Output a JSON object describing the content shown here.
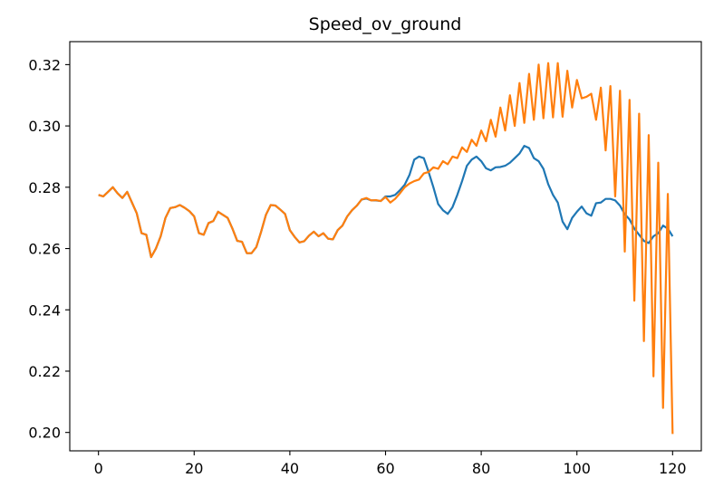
{
  "chart_data": {
    "type": "line",
    "title": "Speed_ov_ground",
    "xlabel": "",
    "ylabel": "",
    "xlim": [
      -6,
      126
    ],
    "ylim": [
      0.194,
      0.3275
    ],
    "xticks": [
      0,
      20,
      40,
      60,
      80,
      100,
      120
    ],
    "yticks": [
      0.2,
      0.22,
      0.24,
      0.26,
      0.28,
      0.3,
      0.32
    ],
    "ytick_labels": [
      "0.20",
      "0.22",
      "0.24",
      "0.26",
      "0.28",
      "0.30",
      "0.32"
    ],
    "grid": false,
    "legend": "none",
    "series": [
      {
        "color": "#1f77b4",
        "x": [
          0,
          1,
          2,
          3,
          4,
          5,
          6,
          7,
          8,
          9,
          10,
          11,
          12,
          13,
          14,
          15,
          16,
          17,
          18,
          19,
          20,
          21,
          22,
          23,
          24,
          25,
          26,
          27,
          28,
          29,
          30,
          31,
          32,
          33,
          34,
          35,
          36,
          37,
          38,
          39,
          40,
          41,
          42,
          43,
          44,
          45,
          46,
          47,
          48,
          49,
          50,
          51,
          52,
          53,
          54,
          55,
          56,
          57,
          58,
          59,
          60,
          61,
          62,
          63,
          64,
          65,
          66,
          67,
          68,
          69,
          70,
          71,
          72,
          73,
          74,
          75,
          76,
          77,
          78,
          79,
          80,
          81,
          82,
          83,
          84,
          85,
          86,
          87,
          88,
          89,
          90,
          91,
          92,
          93,
          94,
          95,
          96,
          97,
          98,
          99,
          100,
          101,
          102,
          103,
          104,
          105,
          106,
          107,
          108,
          109,
          110,
          111,
          112,
          113,
          114,
          115,
          116,
          117,
          118,
          119,
          120
        ],
        "y": [
          0.2775,
          0.277,
          0.2785,
          0.28,
          0.278,
          0.2765,
          0.2785,
          0.275,
          0.2715,
          0.265,
          0.2645,
          0.2572,
          0.26,
          0.264,
          0.27,
          0.2732,
          0.2735,
          0.2742,
          0.2733,
          0.2722,
          0.2705,
          0.265,
          0.2645,
          0.2683,
          0.269,
          0.272,
          0.271,
          0.27,
          0.2665,
          0.2625,
          0.2622,
          0.2585,
          0.2585,
          0.2605,
          0.2655,
          0.271,
          0.2742,
          0.274,
          0.2727,
          0.2713,
          0.266,
          0.2638,
          0.262,
          0.2624,
          0.2642,
          0.2655,
          0.264,
          0.265,
          0.2632,
          0.263,
          0.266,
          0.2675,
          0.2705,
          0.2725,
          0.274,
          0.276,
          0.2763,
          0.2757,
          0.2757,
          0.2755,
          0.277,
          0.277,
          0.2775,
          0.279,
          0.2808,
          0.284,
          0.289,
          0.29,
          0.2895,
          0.285,
          0.28,
          0.2745,
          0.2725,
          0.2713,
          0.2735,
          0.2775,
          0.282,
          0.287,
          0.289,
          0.29,
          0.2885,
          0.2862,
          0.2855,
          0.2865,
          0.2866,
          0.287,
          0.288,
          0.2895,
          0.291,
          0.2935,
          0.2928,
          0.2895,
          0.2885,
          0.286,
          0.281,
          0.2775,
          0.275,
          0.2688,
          0.2663,
          0.27,
          0.272,
          0.2737,
          0.2715,
          0.2707,
          0.2748,
          0.275,
          0.2762,
          0.2762,
          0.2757,
          0.274,
          0.2712,
          0.2695,
          0.2665,
          0.2645,
          0.2625,
          0.2618,
          0.264,
          0.265,
          0.2675,
          0.2665,
          0.264
        ]
      },
      {
        "color": "#ff7f0e",
        "x": [
          0,
          1,
          2,
          3,
          4,
          5,
          6,
          7,
          8,
          9,
          10,
          11,
          12,
          13,
          14,
          15,
          16,
          17,
          18,
          19,
          20,
          21,
          22,
          23,
          24,
          25,
          26,
          27,
          28,
          29,
          30,
          31,
          32,
          33,
          34,
          35,
          36,
          37,
          38,
          39,
          40,
          41,
          42,
          43,
          44,
          45,
          46,
          47,
          48,
          49,
          50,
          51,
          52,
          53,
          54,
          55,
          56,
          57,
          58,
          59,
          60,
          61,
          62,
          63,
          64,
          65,
          66,
          67,
          68,
          69,
          70,
          71,
          72,
          73,
          74,
          75,
          76,
          77,
          78,
          79,
          80,
          81,
          82,
          83,
          84,
          85,
          86,
          87,
          88,
          89,
          90,
          91,
          92,
          93,
          94,
          95,
          96,
          97,
          98,
          99,
          100,
          101,
          102,
          103,
          104,
          105,
          106,
          107,
          108,
          109,
          110,
          111,
          112,
          113,
          114,
          115,
          116,
          117,
          118,
          119,
          120
        ],
        "y": [
          0.2775,
          0.277,
          0.2785,
          0.28,
          0.278,
          0.2765,
          0.2785,
          0.275,
          0.2715,
          0.265,
          0.2645,
          0.2572,
          0.26,
          0.264,
          0.27,
          0.2732,
          0.2735,
          0.2742,
          0.2733,
          0.2722,
          0.2705,
          0.265,
          0.2645,
          0.2683,
          0.269,
          0.272,
          0.271,
          0.27,
          0.2665,
          0.2625,
          0.2622,
          0.2585,
          0.2585,
          0.2605,
          0.2655,
          0.271,
          0.2742,
          0.274,
          0.2727,
          0.2713,
          0.266,
          0.2638,
          0.262,
          0.2624,
          0.2642,
          0.2655,
          0.264,
          0.265,
          0.2632,
          0.263,
          0.266,
          0.2675,
          0.2705,
          0.2725,
          0.274,
          0.276,
          0.2765,
          0.2757,
          0.2758,
          0.2755,
          0.2768,
          0.275,
          0.2762,
          0.278,
          0.28,
          0.2812,
          0.282,
          0.2825,
          0.2845,
          0.285,
          0.2865,
          0.286,
          0.2885,
          0.2875,
          0.29,
          0.2895,
          0.293,
          0.2915,
          0.2955,
          0.2935,
          0.2985,
          0.295,
          0.302,
          0.2965,
          0.306,
          0.2985,
          0.31,
          0.3,
          0.314,
          0.301,
          0.317,
          0.302,
          0.32,
          0.3025,
          0.3205,
          0.3028,
          0.3205,
          0.303,
          0.318,
          0.306,
          0.315,
          0.309,
          0.3095,
          0.3105,
          0.302,
          0.3125,
          0.292,
          0.313,
          0.277,
          0.3115,
          0.259,
          0.3085,
          0.243,
          0.304,
          0.2298,
          0.297,
          0.2183,
          0.288,
          0.208,
          0.2778,
          0.1995
        ]
      }
    ]
  }
}
